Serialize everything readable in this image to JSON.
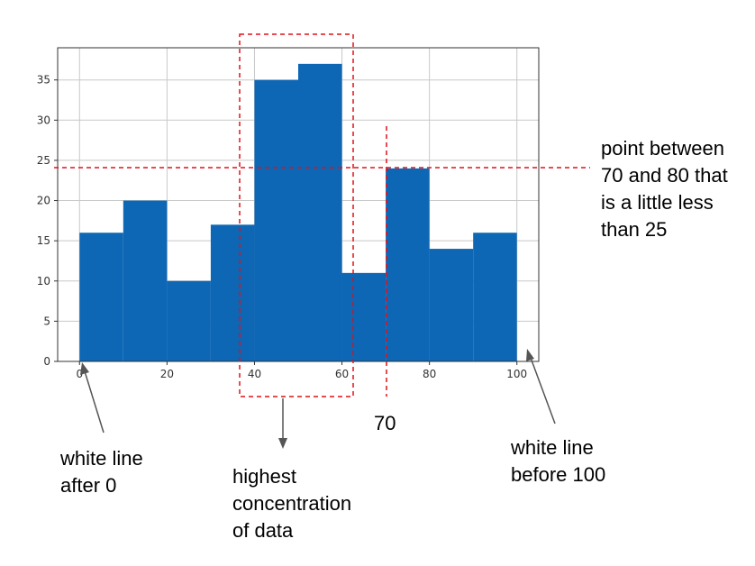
{
  "chart_data": {
    "type": "bar",
    "title": "",
    "xlabel": "",
    "ylabel": "",
    "bin_edges": [
      0,
      10,
      20,
      30,
      40,
      50,
      60,
      70,
      80,
      90,
      100
    ],
    "values": [
      16,
      20,
      10,
      17,
      35,
      37,
      11,
      24,
      14,
      16
    ],
    "xlim": [
      -5,
      105
    ],
    "ylim": [
      0,
      39
    ],
    "xticks": [
      0,
      20,
      40,
      60,
      80,
      100
    ],
    "yticks": [
      0,
      5,
      10,
      15,
      20,
      25,
      30,
      35
    ],
    "grid": true,
    "bar_color": "#0d67b5"
  },
  "annotations": {
    "point_label": "point between\n70 and 80 that\nis a little less\nthan 25",
    "seventy_label": "70",
    "white_line_after_0": "white line\nafter 0",
    "highest_concentration": "highest\nconcentration\nof data",
    "white_line_before_100": "white line\nbefore 100"
  },
  "colors": {
    "annotation_dash": "#e0101a",
    "arrow": "#555555",
    "grid": "#c8c8c8",
    "axes": "#333333"
  }
}
